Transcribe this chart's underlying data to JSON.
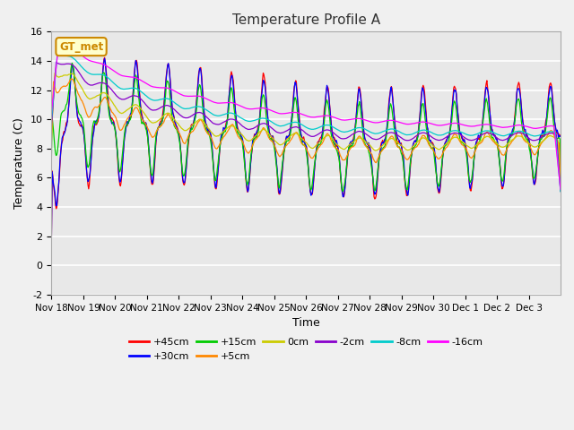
{
  "title": "Temperature Profile A",
  "xlabel": "Time",
  "ylabel": "Temperature (C)",
  "ylim": [
    -2,
    16
  ],
  "yticks": [
    -2,
    0,
    2,
    4,
    6,
    8,
    10,
    12,
    14,
    16
  ],
  "x_tick_labels": [
    "Nov 18",
    "Nov 19",
    "Nov 20",
    "Nov 21",
    "Nov 22",
    "Nov 23",
    "Nov 24",
    "Nov 25",
    "Nov 26",
    "Nov 27",
    "Nov 28",
    "Nov 29",
    "Nov 30",
    "Dec 1",
    "Dec 2",
    "Dec 3"
  ],
  "series": [
    {
      "label": "+45cm",
      "color": "#ff0000"
    },
    {
      "label": "+30cm",
      "color": "#0000ff"
    },
    {
      "label": "+15cm",
      "color": "#00cc00"
    },
    {
      "label": "+5cm",
      "color": "#ff8800"
    },
    {
      "label": "0cm",
      "color": "#cccc00"
    },
    {
      "label": "-2cm",
      "color": "#8800cc"
    },
    {
      "label": "-8cm",
      "color": "#00cccc"
    },
    {
      "label": "-16cm",
      "color": "#ff00ff"
    }
  ],
  "annotation_text": "GT_met",
  "annotation_bg": "#ffffcc",
  "annotation_border": "#cc8800",
  "fig_bg": "#f0f0f0",
  "plot_bg": "#e8e8e8",
  "title_color": "#333333",
  "grid_color": "#ffffff",
  "n_days": 16,
  "pts_per_day": 48
}
